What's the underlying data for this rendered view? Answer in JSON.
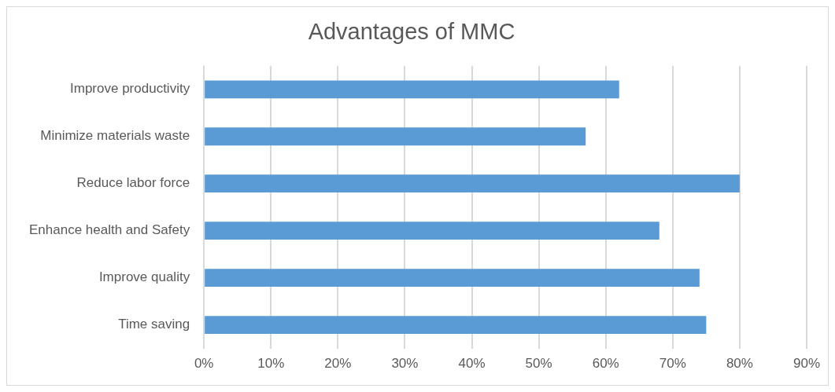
{
  "chart_data": {
    "type": "bar",
    "orientation": "horizontal",
    "title": "Advantages of MMC",
    "categories": [
      "Improve productivity",
      "Minimize materials waste",
      "Reduce labor force",
      "Enhance health and Safety",
      "Improve quality",
      "Time saving"
    ],
    "values": [
      62,
      57,
      80,
      68,
      74,
      75
    ],
    "color": "#5b9bd5",
    "xlim": [
      0,
      90
    ],
    "xticks": [
      {
        "value": 0,
        "label": "0%"
      },
      {
        "value": 10,
        "label": "10%"
      },
      {
        "value": 20,
        "label": "20%"
      },
      {
        "value": 30,
        "label": "30%"
      },
      {
        "value": 40,
        "label": "40%"
      },
      {
        "value": 50,
        "label": "50%"
      },
      {
        "value": 60,
        "label": "60%"
      },
      {
        "value": 70,
        "label": "70%"
      },
      {
        "value": 80,
        "label": "80%"
      },
      {
        "value": 90,
        "label": "90%"
      }
    ],
    "grid": "x",
    "legend": false
  }
}
